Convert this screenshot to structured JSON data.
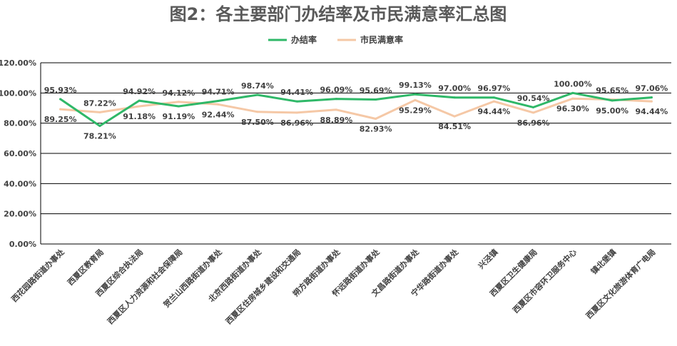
{
  "chart_data": {
    "type": "line",
    "title": "图2：各主要部门办结率及市民满意率汇总图",
    "categories": [
      "西花园路街道办事处",
      "西夏区教育局",
      "西夏区综合执法局",
      "西夏区人力资源和社会保障局",
      "贺兰山西路街道办事处",
      "北京西路街道办事处",
      "西夏区住房城乡建设和交通局",
      "朔方路街道办事处",
      "怀远路街道办事处",
      "文昌路街道办事处",
      "宁华路街道办事处",
      "兴泾镇",
      "西夏区卫生健康局",
      "西夏区市容环卫服务中心",
      "镇北堡镇",
      "西夏区文化旅游体育广电局"
    ],
    "series": [
      {
        "name": "办结率",
        "color": "#2fb868",
        "values": [
          95.93,
          78.21,
          94.92,
          91.19,
          94.71,
          98.74,
          94.41,
          96.09,
          95.69,
          99.13,
          97.0,
          96.97,
          90.54,
          100.0,
          95.0,
          97.06
        ],
        "labels": [
          "95.93%",
          "78.21%",
          "94.92%",
          "91.19%",
          "94.71%",
          "98.74%",
          "94.41%",
          "96.09%",
          "95.69%",
          "99.13%",
          "97.00%",
          "96.97%",
          "90.54%",
          "100.00%",
          "95.00%",
          "97.06%"
        ]
      },
      {
        "name": "市民满意率",
        "color": "#f5c8a6",
        "values": [
          89.25,
          87.22,
          91.18,
          94.12,
          92.44,
          87.5,
          86.96,
          88.89,
          82.93,
          95.29,
          84.51,
          94.44,
          86.96,
          96.3,
          95.65,
          94.44
        ],
        "labels": [
          "89.25%",
          "87.22%",
          "91.18%",
          "94.12%",
          "92.44%",
          "87.50%",
          "86.96%",
          "88.89%",
          "82.93%",
          "95.29%",
          "84.51%",
          "94.44%",
          "86.96%",
          "96.30%",
          "95.65%",
          "94.44%"
        ]
      }
    ],
    "y_ticks": [
      "0.00%",
      "20.00%",
      "40.00%",
      "60.00%",
      "80.00%",
      "100.00%",
      "120.00%"
    ],
    "ylim": [
      0,
      120
    ],
    "grid": true,
    "legend_position": "top-center"
  }
}
